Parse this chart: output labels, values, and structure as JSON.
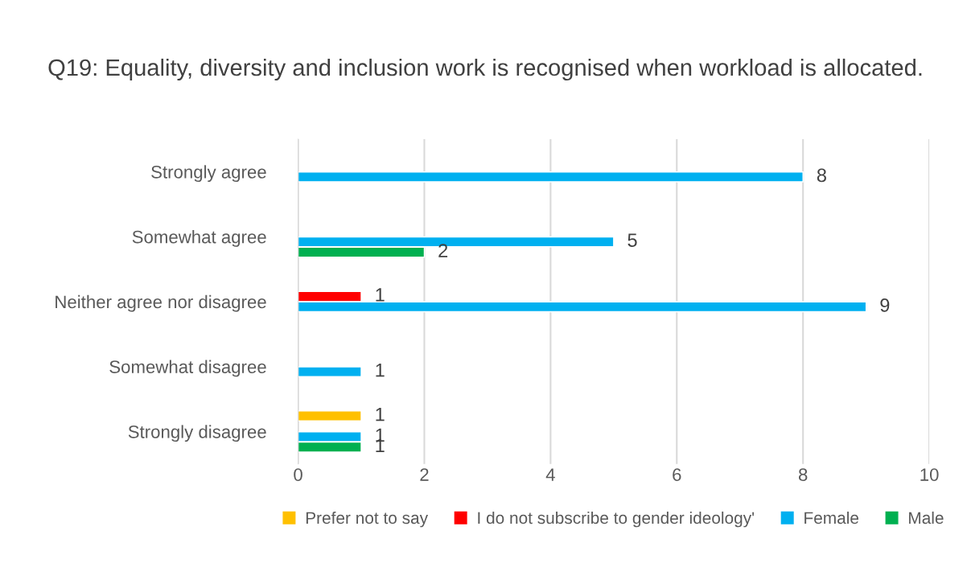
{
  "chart_data": {
    "type": "bar",
    "orientation": "horizontal",
    "title": "Q19: Equality, diversity and inclusion work is recognised when workload is allocated.",
    "categories": [
      "Strongly agree",
      "Somewhat agree",
      "Neither agree nor disagree",
      "Somewhat disagree",
      "Strongly disagree"
    ],
    "series": [
      {
        "name": "Prefer not to say",
        "color": "#ffc000",
        "values": [
          null,
          null,
          null,
          null,
          1
        ]
      },
      {
        "name": "I do not subscribe to gender ideology'",
        "color": "#ff0000",
        "values": [
          null,
          null,
          1,
          null,
          null
        ]
      },
      {
        "name": "Female",
        "color": "#00b0f0",
        "values": [
          8,
          5,
          9,
          1,
          1
        ]
      },
      {
        "name": "Male",
        "color": "#00b050",
        "values": [
          null,
          2,
          null,
          null,
          1
        ]
      }
    ],
    "xlim": [
      0,
      10
    ],
    "xticks": [
      0,
      2,
      4,
      6,
      8,
      10
    ],
    "grid": "x",
    "legend": "bottom",
    "data_labels": true
  }
}
